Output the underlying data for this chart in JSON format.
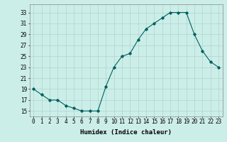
{
  "x": [
    0,
    1,
    2,
    3,
    4,
    5,
    6,
    7,
    8,
    9,
    10,
    11,
    12,
    13,
    14,
    15,
    16,
    17,
    18,
    19,
    20,
    21,
    22,
    23
  ],
  "y": [
    19,
    18,
    17,
    17,
    16,
    15.5,
    15,
    15,
    15,
    19.5,
    23,
    25,
    25.5,
    28,
    30,
    31,
    32,
    33,
    33,
    33,
    29,
    26,
    24,
    23
  ],
  "line_color": "#006060",
  "bg_color": "#cceee8",
  "grid_color": "#b0d4ce",
  "xlabel": "Humidex (Indice chaleur)",
  "ylabel_ticks": [
    15,
    17,
    19,
    21,
    23,
    25,
    27,
    29,
    31,
    33
  ],
  "xtick_labels": [
    "0",
    "1",
    "2",
    "3",
    "4",
    "5",
    "6",
    "7",
    "8",
    "9",
    "10",
    "11",
    "12",
    "13",
    "14",
    "15",
    "16",
    "17",
    "18",
    "19",
    "20",
    "21",
    "22",
    "23"
  ],
  "ylim": [
    14.0,
    34.5
  ],
  "xlim": [
    -0.5,
    23.5
  ],
  "label_fontsize": 6.5,
  "tick_fontsize": 5.5
}
